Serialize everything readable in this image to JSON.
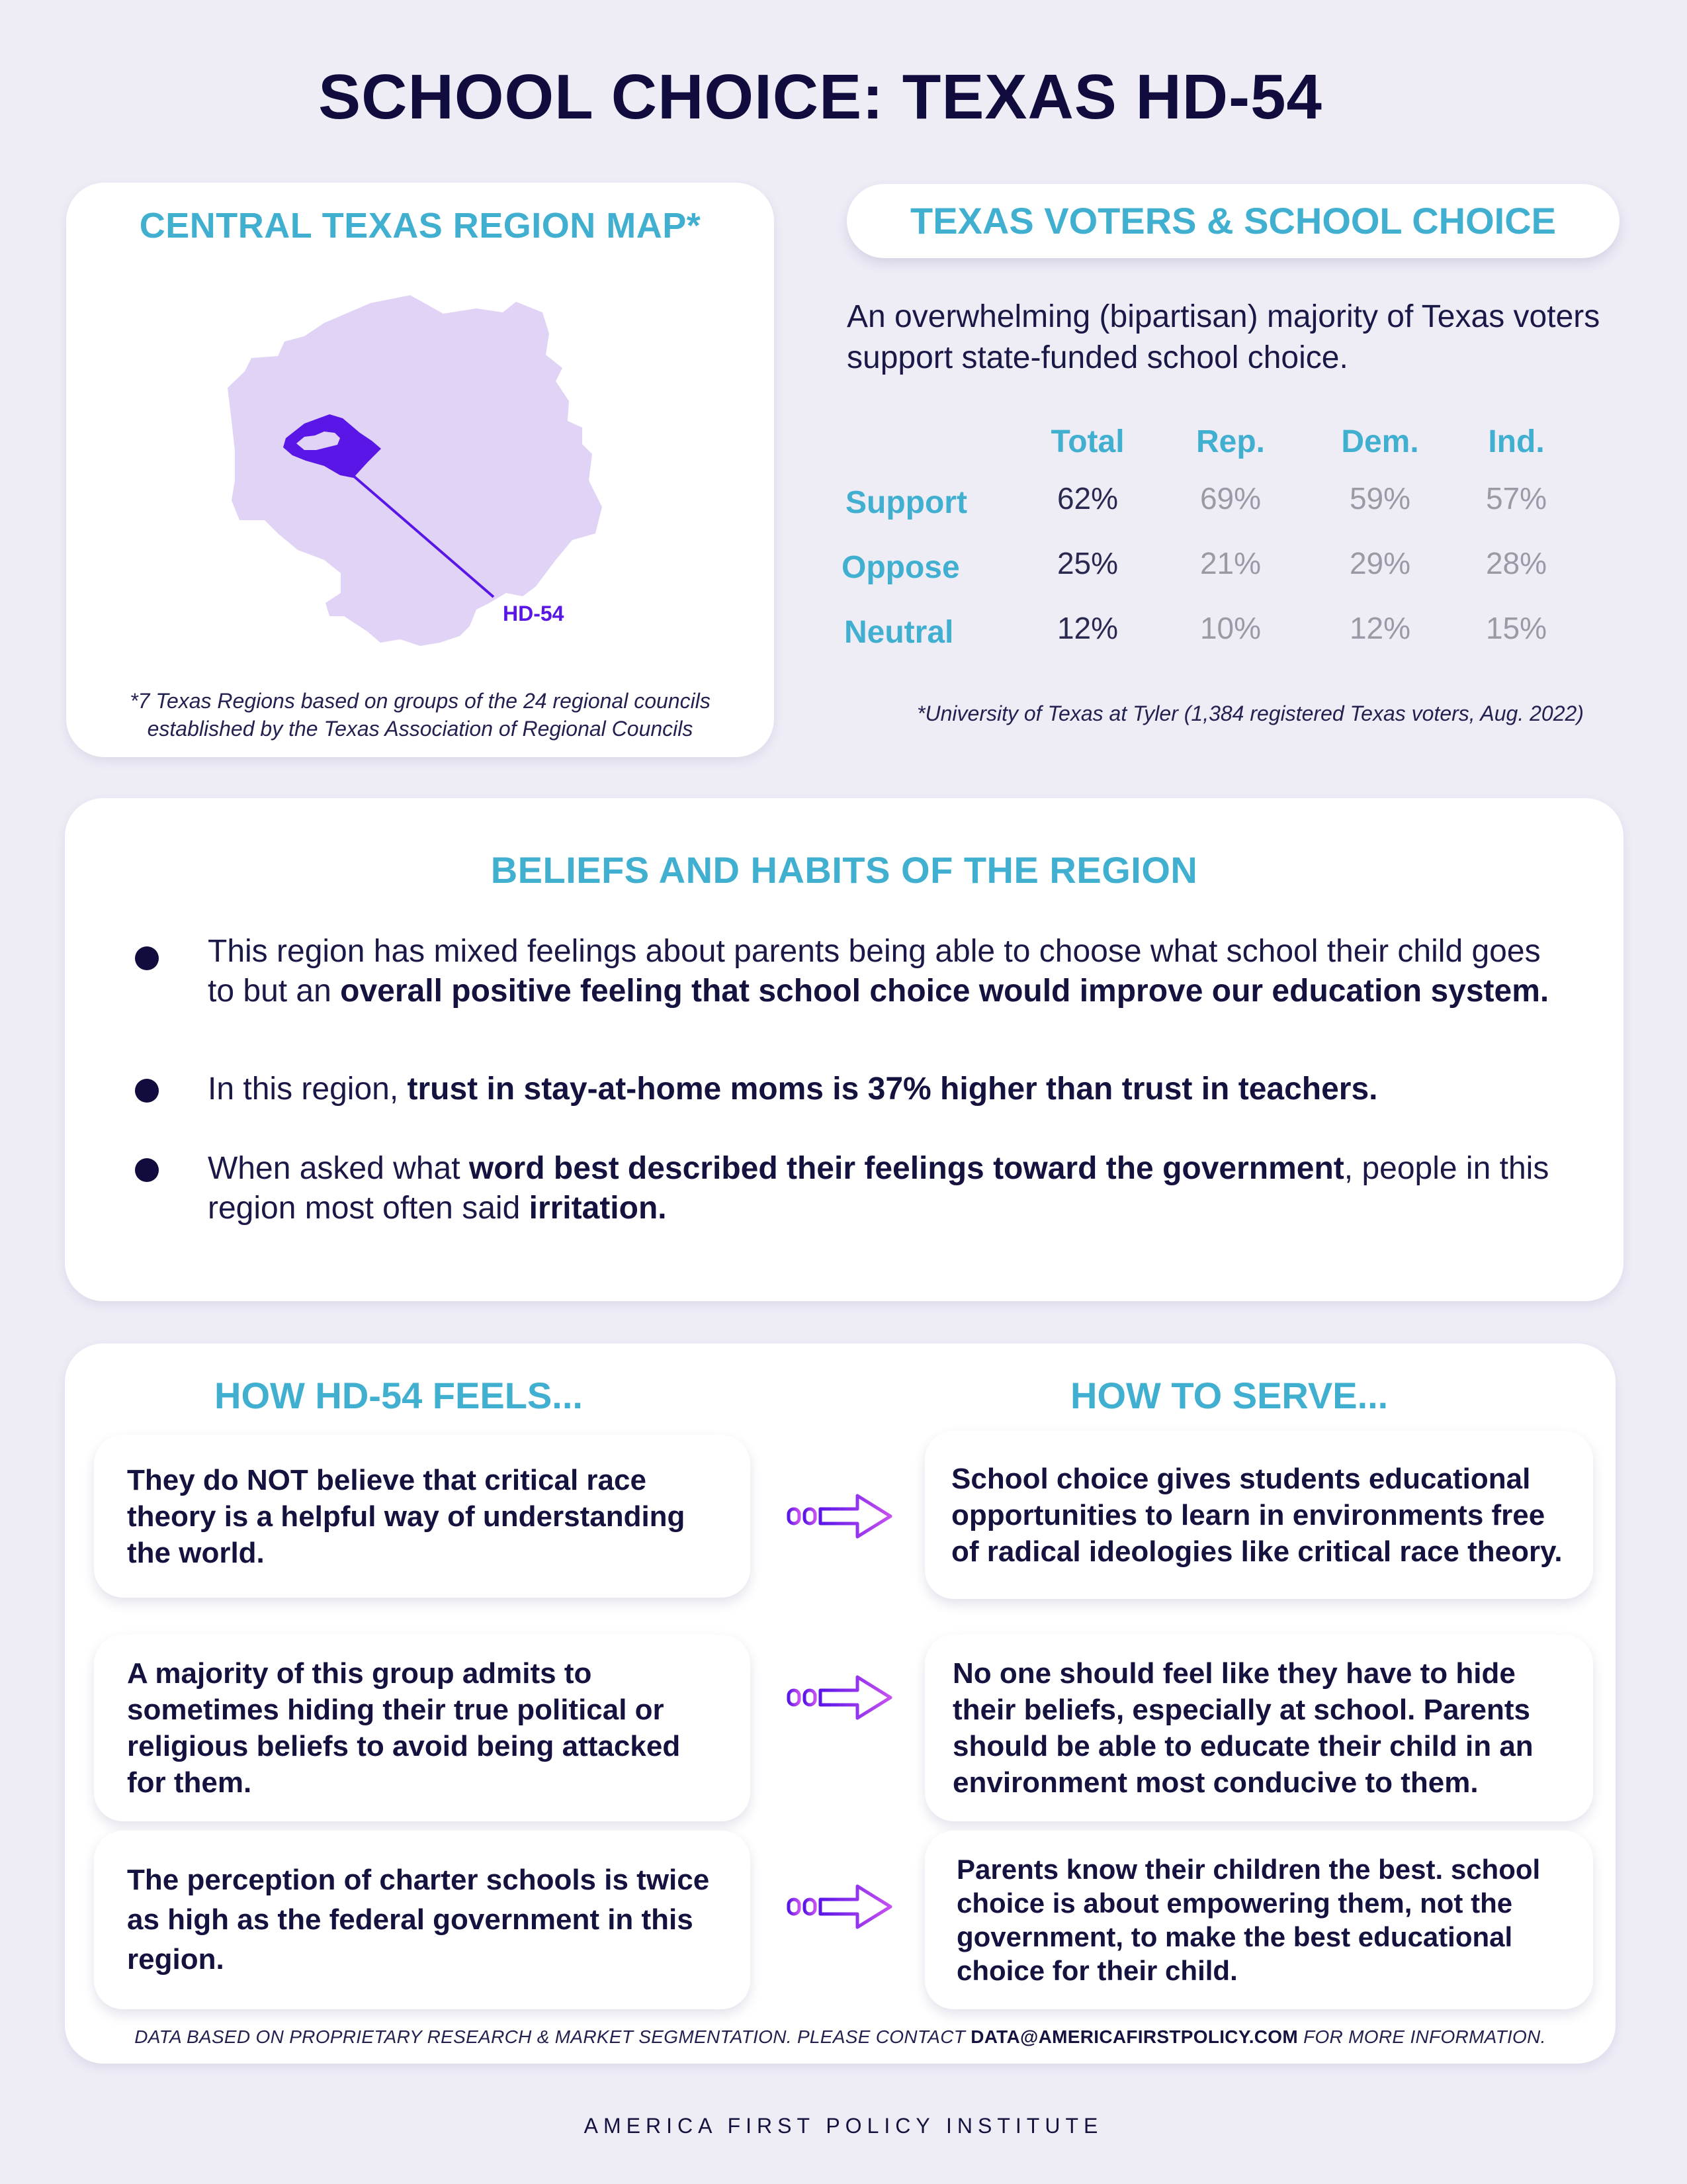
{
  "title": "SCHOOL CHOICE: TEXAS HD-54",
  "map": {
    "heading": "CENTRAL TEXAS REGION MAP*",
    "district_label": "HD-54",
    "note_line1": "*7 Texas Regions based on groups of the 24 regional councils",
    "note_line2": "established by the Texas Association of Regional Councils",
    "colors": {
      "region": "#e0d3f6",
      "district": "#5a16e6"
    }
  },
  "survey": {
    "heading": "TEXAS VOTERS & SCHOOL CHOICE",
    "intro": "An overwhelming (bipartisan) majority of Texas voters support state-funded school choice.",
    "columns": [
      "Total",
      "Rep.",
      "Dem.",
      "Ind."
    ],
    "rows": [
      {
        "label": "Support",
        "values": [
          "62%",
          "69%",
          "59%",
          "57%"
        ]
      },
      {
        "label": "Oppose",
        "values": [
          "25%",
          "21%",
          "29%",
          "28%"
        ]
      },
      {
        "label": "Neutral",
        "values": [
          "12%",
          "10%",
          "12%",
          "15%"
        ]
      }
    ],
    "source": "*University of Texas at Tyler (1,384 registered Texas voters, Aug. 2022)"
  },
  "beliefs": {
    "heading": "BELIEFS AND HABITS OF THE REGION",
    "b1": {
      "p1": "This region has mixed feelings about parents being able to choose what school their child goes to but an ",
      "bold1": "overall positive feeling that school choice would improve our education system."
    },
    "b2": {
      "p1": "In this region, ",
      "bold1": "trust in stay-at-home moms is 37% higher than trust in teachers."
    },
    "b3": {
      "p1": "When asked what ",
      "bold1": "word best described their feelings toward the government",
      "p2": ", people in this region most often said ",
      "bold2": "irritation."
    }
  },
  "feels": {
    "left_heading": "HOW HD-54 FEELS...",
    "right_heading": "HOW TO SERVE...",
    "pairs": [
      {
        "feel": "They do NOT believe that critical race theory is a helpful way of understanding the world.",
        "serve": "School choice gives students educational opportunities to learn in environments free of radical ideologies like critical race theory."
      },
      {
        "feel": "A majority of this group admits to sometimes hiding their true political or religious beliefs to avoid being attacked for them.",
        "serve": "No one should feel like they have to hide their beliefs, especially at school. Parents should be able to educate their child in an environment most conducive to them."
      },
      {
        "feel": "The perception of charter schools is twice as high as the federal government in this region.",
        "serve": "Parents know their children the best. school choice is about empowering them, not the government, to make the best educational choice for their child."
      }
    ],
    "footer_before": "DATA BASED ON PROPRIETARY RESEARCH & MARKET SEGMENTATION. PLEASE CONTACT ",
    "footer_email": "DATA@AMERICAFIRSTPOLICY.COM",
    "footer_after": " FOR MORE INFORMATION."
  },
  "brand": "AMERICA FIRST POLICY INSTITUTE"
}
